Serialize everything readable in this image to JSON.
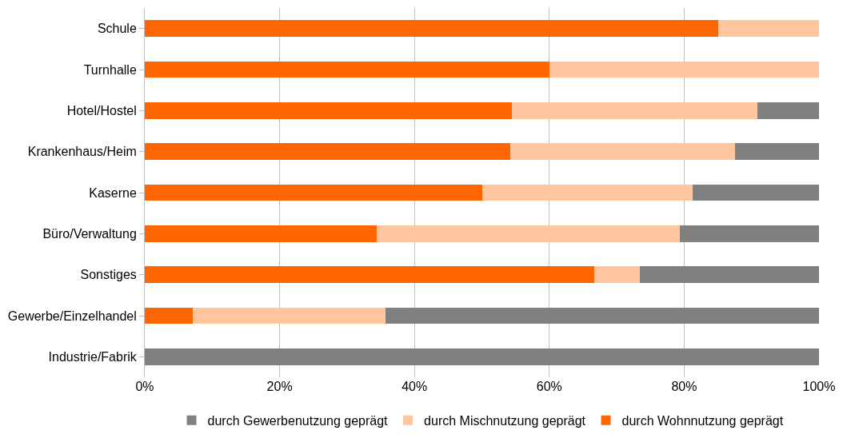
{
  "chart_data": {
    "type": "bar",
    "orientation": "horizontal",
    "stacked": true,
    "categories": [
      "Schule",
      "Turnhalle",
      "Hotel/Hostel",
      "Krankenhaus/Heim",
      "Kaserne",
      "Büro/Verwaltung",
      "Sonstiges",
      "Gewerbe/Einzelhandel",
      "Industrie/Fabrik"
    ],
    "series": [
      {
        "name": "durch Wohnnutzung geprägt",
        "color": "#ff6600",
        "values": [
          85,
          60,
          54.5,
          54.2,
          50,
          34.4,
          66.7,
          7.1,
          0
        ]
      },
      {
        "name": "durch Mischnutzung geprägt",
        "color": "#ffc59e",
        "values": [
          15,
          40,
          36.4,
          33.3,
          31.3,
          44.9,
          6.7,
          28.6,
          0
        ]
      },
      {
        "name": "durch Gewerbenutzung geprägt",
        "color": "#808080",
        "values": [
          0,
          0,
          9.1,
          12.5,
          18.7,
          20.7,
          26.6,
          64.3,
          100
        ]
      }
    ],
    "xlim": [
      0,
      100
    ],
    "xticks": [
      {
        "value": 0,
        "label": "0%"
      },
      {
        "value": 20,
        "label": "20%"
      },
      {
        "value": 40,
        "label": "40%"
      },
      {
        "value": 60,
        "label": "60%"
      },
      {
        "value": 80,
        "label": "80%"
      },
      {
        "value": 100,
        "label": "100%"
      }
    ],
    "grid": "x",
    "legend": "bottom"
  }
}
